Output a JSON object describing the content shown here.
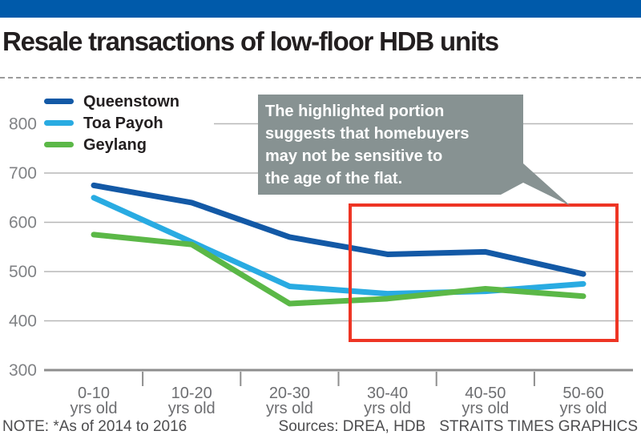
{
  "title": "Resale transactions of low-floor HDB units",
  "callout": {
    "lines": [
      "The highlighted portion",
      "suggests that homebuyers",
      "may not be sensitive to",
      "the age of the flat."
    ],
    "bg": "#879292",
    "text_color": "#ffffff"
  },
  "chart_data": {
    "type": "line",
    "title": "Resale transactions of low-floor HDB units",
    "categories": [
      "0-10",
      "10-20",
      "20-30",
      "30-40",
      "40-50",
      "50-60"
    ],
    "category_suffix": "yrs old",
    "xlabel": "",
    "ylabel": "",
    "ylim": [
      300,
      800
    ],
    "yticks": [
      300,
      400,
      500,
      600,
      700,
      800
    ],
    "grid": true,
    "legend_position": "top-left",
    "series": [
      {
        "name": "Queenstown",
        "color": "#1359a6",
        "values": [
          675,
          640,
          570,
          535,
          540,
          495
        ]
      },
      {
        "name": "Toa Payoh",
        "color": "#29abe2",
        "values": [
          650,
          560,
          470,
          455,
          460,
          475
        ]
      },
      {
        "name": "Geylang",
        "color": "#5bb847",
        "values": [
          575,
          555,
          435,
          445,
          465,
          450
        ]
      }
    ],
    "highlight": {
      "from_category": "30-40 yrs old",
      "to_category": "50-60 yrs old",
      "color": "#ee3524",
      "annotation": "The highlighted portion suggests that homebuyers may not be sensitive to the age of the flat."
    }
  },
  "footer": {
    "note": "NOTE: *As of 2014 to 2016",
    "sources": "Sources: DREA, HDB",
    "credit": "STRAITS TIMES GRAPHICS"
  },
  "colors": {
    "brand_blue": "#005aaa",
    "grid": "#b7b7b7",
    "axis": "#8e8e8e",
    "title_text": "#231f20",
    "label_gray": "#6d6e71",
    "ytick_gray": "#808285",
    "footer_gray": "#4d4d4f"
  }
}
